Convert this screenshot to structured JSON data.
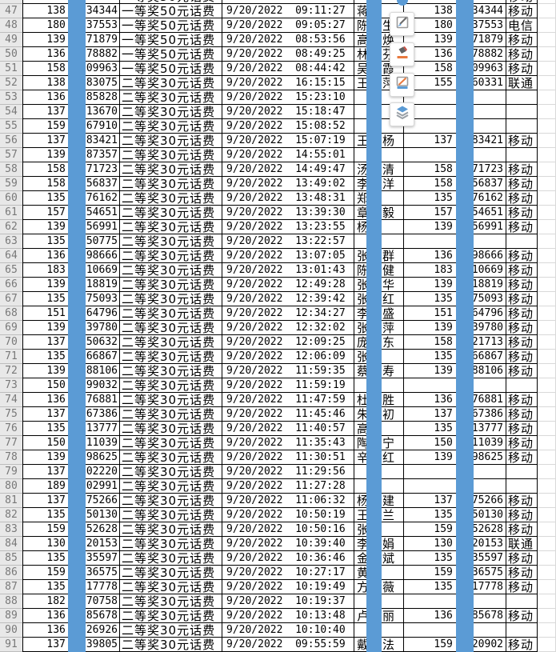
{
  "colors": {
    "mask_blue": "#5b9bd5",
    "header_bg": "#e8e8e8",
    "header_text": "#787878",
    "grid_border": "#000000",
    "light_gridline": "#d9d9d9"
  },
  "masks": [
    {
      "name": "left-phone-mask"
    },
    {
      "name": "name-mask"
    },
    {
      "name": "right-phone-mask"
    }
  ],
  "toolbar": {
    "buttons": [
      {
        "icon": "pen-square-icon"
      },
      {
        "icon": "fill-bucket-icon"
      },
      {
        "icon": "pencil-underline-icon"
      },
      {
        "icon": "layers-icon"
      }
    ]
  },
  "table": {
    "columns": [
      "row_header",
      "phone_left",
      "prize",
      "datetime",
      "name",
      "phone_right",
      "carrier"
    ],
    "rows": [
      {
        "partial": true,
        "r": "",
        "lp": "",
        "ls": "",
        "pz": "一等奖50元话费",
        "dt": "9/20/2022",
        "nf": "",
        "nl": "",
        "rp": "",
        "rs": "",
        "ca": "移动"
      },
      {
        "r": "47",
        "lp": "138",
        "ls": "34344",
        "pz": "一等奖50元话费",
        "dt": "9/20/2022  09:11:27",
        "nf": "蒋",
        "nl": "",
        "rp": "138",
        "rs": "34344",
        "ca": "移动"
      },
      {
        "r": "48",
        "lp": "180",
        "ls": "37553",
        "pz": "一等奖50元话费",
        "dt": "9/20/2022  09:05:27",
        "nf": "陈",
        "nl": "生",
        "rp": "180",
        "rs": "37553",
        "ca": "电信"
      },
      {
        "r": "49",
        "lp": "139",
        "ls": "71879",
        "pz": "一等奖50元话费",
        "dt": "9/20/2022  08:53:56",
        "nf": "高",
        "nl": "焕",
        "rp": "139",
        "rs": "71879",
        "ca": "移动"
      },
      {
        "r": "50",
        "lp": "136",
        "ls": "78882",
        "pz": "一等奖50元话费",
        "dt": "9/20/2022  08:49:25",
        "nf": "林",
        "nl": "芬",
        "rp": "136",
        "rs": "78882",
        "ca": "移动"
      },
      {
        "r": "51",
        "lp": "158",
        "ls": "09963",
        "pz": "一等奖50元话费",
        "dt": "9/20/2022  08:44:42",
        "nf": "吴",
        "nl": "霞",
        "rp": "158",
        "rs": "09963",
        "ca": "移动"
      },
      {
        "r": "52",
        "lp": "138",
        "ls": "83075",
        "pz": "二等奖30元话费",
        "dt": "9/20/2022  16:15:15",
        "nf": "王",
        "nl": "萍",
        "rp": "155",
        "rs": "60331",
        "ca": "联通"
      },
      {
        "r": "53",
        "lp": "136",
        "ls": "85828",
        "pz": "二等奖30元话费",
        "dt": "9/20/2022  15:23:10",
        "nf": "",
        "nl": "",
        "rp": "",
        "rs": "",
        "ca": ""
      },
      {
        "r": "54",
        "lp": "137",
        "ls": "13670",
        "pz": "二等奖30元话费",
        "dt": "9/20/2022  15:18:47",
        "nf": "",
        "nl": "",
        "rp": "",
        "rs": "",
        "ca": ""
      },
      {
        "r": "55",
        "lp": "159",
        "ls": "67910",
        "pz": "二等奖30元话费",
        "dt": "9/20/2022  15:08:52",
        "nf": "",
        "nl": "",
        "rp": "",
        "rs": "",
        "ca": ""
      },
      {
        "r": "56",
        "lp": "137",
        "ls": "83421",
        "pz": "二等奖30元话费",
        "dt": "9/20/2022  15:07:19",
        "nf": "王",
        "nl": "杨",
        "rp": "137",
        "rs": "83421",
        "ca": "移动"
      },
      {
        "r": "57",
        "lp": "139",
        "ls": "87357",
        "pz": "二等奖30元话费",
        "dt": "9/20/2022  14:55:01",
        "nf": "",
        "nl": "",
        "rp": "",
        "rs": "",
        "ca": ""
      },
      {
        "r": "58",
        "lp": "158",
        "ls": "71723",
        "pz": "二等奖30元话费",
        "dt": "9/20/2022  14:49:47",
        "nf": "汤",
        "nl": "清",
        "rp": "158",
        "rs": "71723",
        "ca": "移动"
      },
      {
        "r": "59",
        "lp": "158",
        "ls": "56837",
        "pz": "二等奖30元话费",
        "dt": "9/20/2022  13:49:02",
        "nf": "李",
        "nl": "洋",
        "rp": "158",
        "rs": "56837",
        "ca": "移动"
      },
      {
        "r": "60",
        "lp": "135",
        "ls": "76162",
        "pz": "二等奖30元话费",
        "dt": "9/20/2022  13:48:31",
        "nf": "郑",
        "nl": "",
        "rp": "135",
        "rs": "76162",
        "ca": "移动"
      },
      {
        "r": "61",
        "lp": "157",
        "ls": "54651",
        "pz": "二等奖30元话费",
        "dt": "9/20/2022  13:39:30",
        "nf": "章",
        "nl": "毅",
        "rp": "157",
        "rs": "54651",
        "ca": "移动"
      },
      {
        "r": "62",
        "lp": "139",
        "ls": "56991",
        "pz": "二等奖30元话费",
        "dt": "9/20/2022  13:23:55",
        "nf": "杨",
        "nl": "",
        "rp": "139",
        "rs": "56991",
        "ca": "移动"
      },
      {
        "r": "63",
        "lp": "135",
        "ls": "50775",
        "pz": "二等奖30元话费",
        "dt": "9/20/2022  13:22:57",
        "nf": "",
        "nl": "",
        "rp": "",
        "rs": "",
        "ca": ""
      },
      {
        "r": "64",
        "lp": "136",
        "ls": "98666",
        "pz": "二等奖30元话费",
        "dt": "9/20/2022  13:07:05",
        "nf": "张",
        "nl": "群",
        "rp": "136",
        "rs": "98666",
        "ca": "移动"
      },
      {
        "r": "65",
        "lp": "183",
        "ls": "10669",
        "pz": "二等奖30元话费",
        "dt": "9/20/2022  13:01:43",
        "nf": "陈",
        "nl": "健",
        "rp": "183",
        "rs": "10669",
        "ca": "移动"
      },
      {
        "r": "66",
        "lp": "139",
        "ls": "18819",
        "pz": "二等奖30元话费",
        "dt": "9/20/2022  12:49:28",
        "nf": "张",
        "nl": "华",
        "rp": "139",
        "rs": "18819",
        "ca": "移动"
      },
      {
        "r": "67",
        "lp": "135",
        "ls": "75093",
        "pz": "二等奖30元话费",
        "dt": "9/20/2022  12:39:42",
        "nf": "张",
        "nl": "红",
        "rp": "135",
        "rs": "75093",
        "ca": "移动"
      },
      {
        "r": "68",
        "lp": "151",
        "ls": "64796",
        "pz": "二等奖30元话费",
        "dt": "9/20/2022  12:34:27",
        "nf": "李",
        "nl": "盛",
        "rp": "151",
        "rs": "64796",
        "ca": "移动"
      },
      {
        "r": "69",
        "lp": "139",
        "ls": "39780",
        "pz": "二等奖30元话费",
        "dt": "9/20/2022  12:32:02",
        "nf": "张",
        "nl": "萍",
        "rp": "139",
        "rs": "39780",
        "ca": "移动"
      },
      {
        "r": "70",
        "lp": "137",
        "ls": "50632",
        "pz": "二等奖30元话费",
        "dt": "9/20/2022  12:09:25",
        "nf": "庞",
        "nl": "东",
        "rp": "158",
        "rs": "21713",
        "ca": "移动"
      },
      {
        "r": "71",
        "lp": "135",
        "ls": "66867",
        "pz": "二等奖30元话费",
        "dt": "9/20/2022  12:06:09",
        "nf": "张",
        "nl": "",
        "rp": "135",
        "rs": "66867",
        "ca": "移动"
      },
      {
        "r": "72",
        "lp": "139",
        "ls": "88106",
        "pz": "二等奖30元话费",
        "dt": "9/20/2022  11:59:35",
        "nf": "蔡",
        "nl": "寿",
        "rp": "139",
        "rs": "88106",
        "ca": "移动"
      },
      {
        "r": "73",
        "lp": "150",
        "ls": "99032",
        "pz": "二等奖30元话费",
        "dt": "9/20/2022  11:59:19",
        "nf": "",
        "nl": "",
        "rp": "",
        "rs": "",
        "ca": ""
      },
      {
        "r": "74",
        "lp": "136",
        "ls": "76881",
        "pz": "二等奖30元话费",
        "dt": "9/20/2022  11:47:59",
        "nf": "杜",
        "nl": "胜",
        "rp": "136",
        "rs": "76881",
        "ca": "移动"
      },
      {
        "r": "75",
        "lp": "137",
        "ls": "67386",
        "pz": "二等奖30元话费",
        "dt": "9/20/2022  11:45:46",
        "nf": "朱",
        "nl": "初",
        "rp": "137",
        "rs": "67386",
        "ca": "移动"
      },
      {
        "r": "76",
        "lp": "135",
        "ls": "13777",
        "pz": "二等奖30元话费",
        "dt": "9/20/2022  11:40:57",
        "nf": "高",
        "nl": "",
        "rp": "135",
        "rs": "13777",
        "ca": "移动"
      },
      {
        "r": "77",
        "lp": "150",
        "ls": "11039",
        "pz": "二等奖30元话费",
        "dt": "9/20/2022  11:35:43",
        "nf": "陶",
        "nl": "宁",
        "rp": "150",
        "rs": "11039",
        "ca": "移动"
      },
      {
        "r": "78",
        "lp": "139",
        "ls": "98625",
        "pz": "二等奖30元话费",
        "dt": "9/20/2022  11:30:51",
        "nf": "辛",
        "nl": "红",
        "rp": "139",
        "rs": "98625",
        "ca": "移动"
      },
      {
        "r": "79",
        "lp": "137",
        "ls": "02220",
        "pz": "二等奖30元话费",
        "dt": "9/20/2022  11:29:56",
        "nf": "",
        "nl": "",
        "rp": "",
        "rs": "",
        "ca": ""
      },
      {
        "r": "80",
        "lp": "189",
        "ls": "02991",
        "pz": "二等奖30元话费",
        "dt": "9/20/2022  11:27:28",
        "nf": "",
        "nl": "",
        "rp": "",
        "rs": "",
        "ca": ""
      },
      {
        "r": "81",
        "lp": "137",
        "ls": "75266",
        "pz": "二等奖30元话费",
        "dt": "9/20/2022  11:06:32",
        "nf": "杨",
        "nl": "建",
        "rp": "137",
        "rs": "75266",
        "ca": "移动"
      },
      {
        "r": "82",
        "lp": "135",
        "ls": "50130",
        "pz": "二等奖30元话费",
        "dt": "9/20/2022  10:50:19",
        "nf": "王",
        "nl": "兰",
        "rp": "135",
        "rs": "50130",
        "ca": "移动"
      },
      {
        "r": "83",
        "lp": "159",
        "ls": "52628",
        "pz": "二等奖30元话费",
        "dt": "9/20/2022  10:50:16",
        "nf": "张",
        "nl": "",
        "rp": "159",
        "rs": "52628",
        "ca": "移动"
      },
      {
        "r": "84",
        "lp": "130",
        "ls": "20153",
        "pz": "二等奖30元话费",
        "dt": "9/20/2022  10:39:40",
        "nf": "李",
        "nl": "娟",
        "rp": "130",
        "rs": "20153",
        "ca": "联通"
      },
      {
        "r": "85",
        "lp": "135",
        "ls": "35597",
        "pz": "二等奖30元话费",
        "dt": "9/20/2022  10:36:46",
        "nf": "金",
        "nl": "斌",
        "rp": "135",
        "rs": "35597",
        "ca": "移动"
      },
      {
        "r": "86",
        "lp": "159",
        "ls": "36575",
        "pz": "二等奖30元话费",
        "dt": "9/20/2022  10:27:17",
        "nf": "黄",
        "nl": "",
        "rp": "159",
        "rs": "36575",
        "ca": "移动"
      },
      {
        "r": "87",
        "lp": "135",
        "ls": "17778",
        "pz": "二等奖30元话费",
        "dt": "9/20/2022  10:19:49",
        "nf": "方",
        "nl": "薇",
        "rp": "135",
        "rs": "17778",
        "ca": "移动"
      },
      {
        "r": "88",
        "lp": "182",
        "ls": "70758",
        "pz": "二等奖30元话费",
        "dt": "9/20/2022  10:19:37",
        "nf": "",
        "nl": "",
        "rp": "",
        "rs": "",
        "ca": ""
      },
      {
        "r": "89",
        "lp": "136",
        "ls": "85678",
        "pz": "二等奖30元话费",
        "dt": "9/20/2022  10:13:48",
        "nf": "卢",
        "nl": "丽",
        "rp": "136",
        "rs": "85678",
        "ca": "移动"
      },
      {
        "r": "90",
        "lp": "136",
        "ls": "26926",
        "pz": "二等奖30元话费",
        "dt": "9/20/2022  10:10:40",
        "nf": "",
        "nl": "",
        "rp": "",
        "rs": "",
        "ca": ""
      },
      {
        "r": "91",
        "lp": "137",
        "ls": "39805",
        "pz": "二等奖30元话费",
        "dt": "9/20/2022  09:55:59",
        "nf": "戴",
        "nl": "法",
        "rp": "159",
        "rs": "20902",
        "ca": "移动"
      }
    ]
  }
}
